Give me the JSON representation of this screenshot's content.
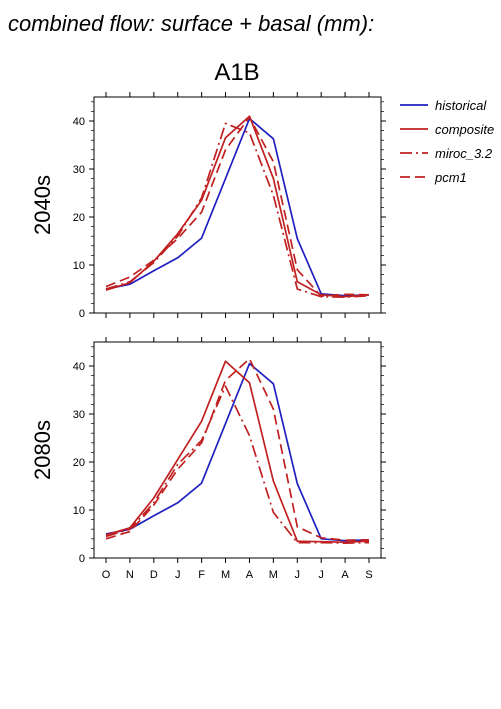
{
  "title": "combined flow: surface + basal (mm):",
  "scenario": "A1B",
  "legend": [
    {
      "name": "historical",
      "color": "#2020c0",
      "dash": "solid"
    },
    {
      "name": "composite",
      "color": "#c02020",
      "dash": "solid"
    },
    {
      "name": "miroc_3.2",
      "color": "#c02020",
      "dash": "dashdot"
    },
    {
      "name": "pcm1",
      "color": "#c02020",
      "dash": "dashed"
    }
  ],
  "chart_data": [
    {
      "type": "line",
      "panel_label": "2040s",
      "categories": [
        "O",
        "N",
        "D",
        "J",
        "F",
        "M",
        "A",
        "M",
        "J",
        "J",
        "A",
        "S"
      ],
      "ylim": [
        0,
        45
      ],
      "yticks": [
        0,
        10,
        20,
        30,
        40
      ],
      "series": [
        {
          "name": "historical",
          "color": "#2020c0",
          "dash": "solid",
          "values": [
            5,
            6,
            8.8,
            11.5,
            15.6,
            28,
            40.5,
            36.3,
            15.5,
            4,
            3.6,
            3.8
          ]
        },
        {
          "name": "composite",
          "color": "#c02020",
          "dash": "solid",
          "values": [
            4.8,
            6.3,
            10.8,
            16.5,
            23.5,
            36.5,
            41,
            28,
            6.5,
            3.8,
            3.4,
            3.8
          ]
        },
        {
          "name": "miroc_3.2",
          "color": "#c02020",
          "dash": "dashdot",
          "values": [
            5,
            6.5,
            10.5,
            16,
            24,
            39.5,
            37.5,
            24.5,
            5,
            3.4,
            3.3,
            3.6
          ]
        },
        {
          "name": "pcm1",
          "color": "#c02020",
          "dash": "dashed",
          "values": [
            5.5,
            7.5,
            11,
            15.5,
            21,
            34,
            40.8,
            31.5,
            9,
            3.5,
            3.9,
            3.8
          ]
        }
      ]
    },
    {
      "type": "line",
      "panel_label": "2080s",
      "categories": [
        "O",
        "N",
        "D",
        "J",
        "F",
        "M",
        "A",
        "M",
        "J",
        "J",
        "A",
        "S"
      ],
      "ylim": [
        0,
        45
      ],
      "yticks": [
        0,
        10,
        20,
        30,
        40
      ],
      "series": [
        {
          "name": "historical",
          "color": "#2020c0",
          "dash": "solid",
          "values": [
            5,
            6,
            8.8,
            11.5,
            15.6,
            28,
            40.5,
            36.3,
            15.5,
            4,
            3.6,
            3.8
          ]
        },
        {
          "name": "composite",
          "color": "#c02020",
          "dash": "solid",
          "values": [
            4.8,
            6.3,
            12.5,
            20.5,
            28.5,
            41,
            36.5,
            16,
            3.5,
            3.4,
            3.3,
            3.5
          ]
        },
        {
          "name": "miroc_3.2",
          "color": "#c02020",
          "dash": "dashdot",
          "values": [
            4.5,
            6,
            11.5,
            19.5,
            24.5,
            35.8,
            25.5,
            9.5,
            3.2,
            3.2,
            3.1,
            3.2
          ]
        },
        {
          "name": "pcm1",
          "color": "#c02020",
          "dash": "dashed",
          "values": [
            4,
            5.5,
            11,
            18.5,
            24,
            37,
            41.5,
            31,
            6.5,
            4.2,
            3.7,
            3.8
          ]
        }
      ]
    }
  ]
}
